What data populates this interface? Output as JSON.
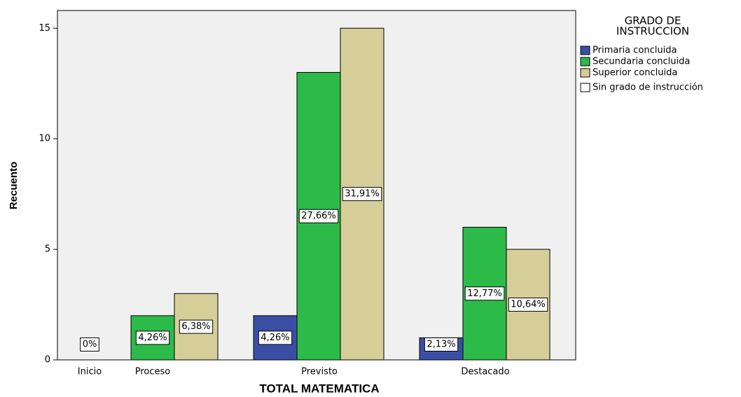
{
  "chart_data": {
    "type": "bar",
    "x_label": "TOTAL MATEMATICA",
    "y_label": "Recuento",
    "legend_title": [
      "GRADO DE",
      "INSTRUCCION"
    ],
    "legend_position": "right",
    "categories": [
      "Inicio",
      "Proceso",
      "Previsto",
      "Destacado"
    ],
    "series": [
      {
        "name": "Primaria concluida",
        "color": "#3b4ea6",
        "values": [
          null,
          null,
          2,
          1
        ],
        "value_labels": [
          null,
          null,
          "4,26%",
          "2,13%"
        ]
      },
      {
        "name": "Secundaria concluida",
        "color": "#2cba48",
        "values": [
          null,
          2,
          13,
          6
        ],
        "value_labels": [
          null,
          "4,26%",
          "27,66%",
          "12,77%"
        ]
      },
      {
        "name": "Superior concluida",
        "color": "#d6ce98",
        "values": [
          null,
          3,
          15,
          5
        ],
        "value_labels": [
          null,
          "6,38%",
          "31,91%",
          "10,64%"
        ]
      },
      {
        "name": "Sin grado de instrucción",
        "color": "#ffffff",
        "values": [
          0,
          null,
          null,
          null
        ],
        "value_labels": [
          "0%",
          null,
          null,
          null
        ]
      }
    ],
    "ylim": [
      0,
      15.8
    ],
    "yticks": [
      0,
      5,
      10,
      15
    ]
  }
}
